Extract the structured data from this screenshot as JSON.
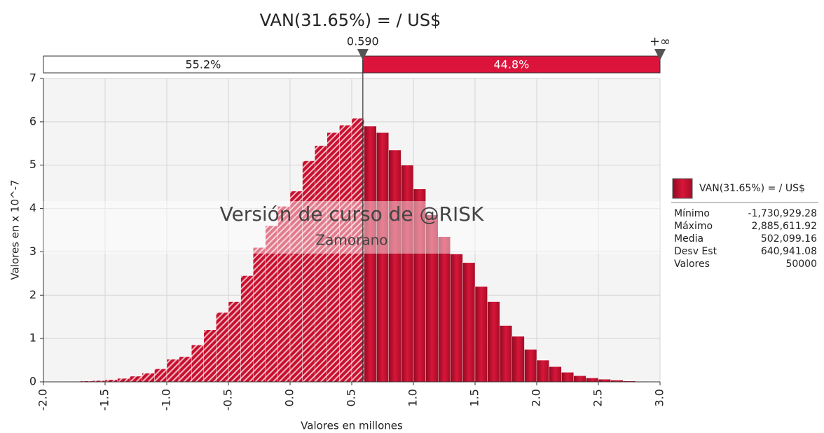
{
  "chart_data": {
    "type": "histogram",
    "title": "VAN(31.65%) = / US$",
    "xlabel": "Valores en millones",
    "ylabel": "Valores en x 10^-7",
    "bins": [
      -1.8,
      -1.7,
      -1.6,
      -1.5,
      -1.4,
      -1.3,
      -1.2,
      -1.1,
      -1.0,
      -0.9,
      -0.8,
      -0.7,
      -0.6,
      -0.5,
      -0.4,
      -0.3,
      -0.2,
      -0.1,
      0.0,
      0.1,
      0.2,
      0.3,
      0.4,
      0.5,
      0.6,
      0.7,
      0.8,
      0.9,
      1.0,
      1.1,
      1.2,
      1.3,
      1.4,
      1.5,
      1.6,
      1.7,
      1.8,
      1.9,
      2.0,
      2.1,
      2.2,
      2.3,
      2.4,
      2.5,
      2.6,
      2.7,
      2.8,
      2.9
    ],
    "series": [
      {
        "name": "VAN(31.65%) = / US$",
        "color": "#c8102e",
        "values": [
          0.01,
          0.02,
          0.03,
          0.05,
          0.08,
          0.13,
          0.2,
          0.3,
          0.52,
          0.58,
          0.85,
          1.2,
          1.6,
          1.85,
          2.45,
          3.1,
          3.6,
          4.05,
          4.4,
          5.1,
          5.45,
          5.75,
          5.92,
          6.08,
          5.9,
          5.75,
          5.35,
          5.0,
          4.45,
          3.85,
          3.35,
          2.95,
          2.75,
          2.2,
          1.85,
          1.3,
          1.05,
          0.75,
          0.5,
          0.35,
          0.22,
          0.14,
          0.09,
          0.06,
          0.04,
          0.02,
          0.01
        ]
      }
    ],
    "xlim": [
      -2,
      3
    ],
    "xticks": [
      {
        "value": -2,
        "label": "-2.0"
      },
      {
        "value": -1.5,
        "label": "-1.5"
      },
      {
        "value": -1,
        "label": "-1.0"
      },
      {
        "value": -0.5,
        "label": "-0.5"
      },
      {
        "value": 0,
        "label": "0.0"
      },
      {
        "value": 0.5,
        "label": "0.5"
      },
      {
        "value": 1,
        "label": "1.0"
      },
      {
        "value": 1.5,
        "label": "1.5"
      },
      {
        "value": 2,
        "label": "2.0"
      },
      {
        "value": 2.5,
        "label": "2.5"
      },
      {
        "value": 3,
        "label": "3.0"
      }
    ],
    "ylim": [
      0,
      7
    ],
    "yticks": [
      0,
      1,
      2,
      3,
      4,
      5,
      6,
      7
    ],
    "grid": true,
    "split": {
      "value": 0.59,
      "label": "0.590",
      "upper_label": "+∞",
      "left": {
        "value": 55.2,
        "label": "55.2%"
      },
      "right": {
        "value": 44.8,
        "label": "44.8%"
      }
    },
    "watermark": [
      "Versión de curso de @RISK",
      "Zamorano"
    ],
    "statistics": [
      {
        "name": "Mínimo",
        "value": -1730929.28,
        "label": "-1,730,929.28"
      },
      {
        "name": "Máximo",
        "value": 2885611.92,
        "label": "2,885,611.92"
      },
      {
        "name": "Media",
        "value": 502099.16,
        "label": "502,099.16"
      },
      {
        "name": "Desv Est",
        "value": 640941.08,
        "label": "640,941.08"
      },
      {
        "name": "Valores",
        "value": 50000
      }
    ]
  }
}
